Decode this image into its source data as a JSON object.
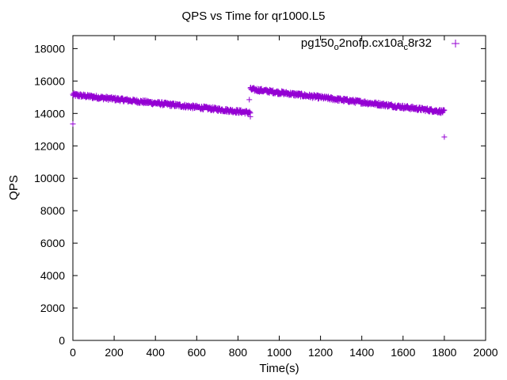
{
  "chart_data": {
    "type": "scatter",
    "title": "QPS vs Time for qr1000.L5",
    "xlabel": "Time(s)",
    "ylabel": "QPS",
    "xlim": [
      0,
      2000
    ],
    "ylim": [
      0,
      18800
    ],
    "xticks": [
      "0",
      "200",
      "400",
      "600",
      "800",
      "1000",
      "1200",
      "1400",
      "1600",
      "1800",
      "2000"
    ],
    "yticks": [
      "0",
      "2000",
      "4000",
      "6000",
      "8000",
      "10000",
      "12000",
      "14000",
      "16000",
      "18000"
    ],
    "grid": false,
    "legend_position": "top-right",
    "marker": "plus",
    "series": [
      {
        "name": "pg150_o2nofp.cx10a_c8r32",
        "name_parts": {
          "a": "pg150",
          "b": "o",
          "c": "2nofp.cx10a",
          "d": "c",
          "e": "8r32"
        },
        "color": "#9400d3",
        "segments": [
          {
            "x_start": 0,
            "x_end": 860,
            "y_start": 15150,
            "y_end": 14050,
            "noise": 220
          },
          {
            "x_start": 860,
            "x_end": 1800,
            "y_start": 15500,
            "y_end": 14100,
            "noise": 220
          }
        ],
        "outliers": [
          {
            "x": 0,
            "y": 13350
          },
          {
            "x": 855,
            "y": 14850
          },
          {
            "x": 860,
            "y": 13800
          },
          {
            "x": 1800,
            "y": 12550
          }
        ]
      }
    ]
  }
}
